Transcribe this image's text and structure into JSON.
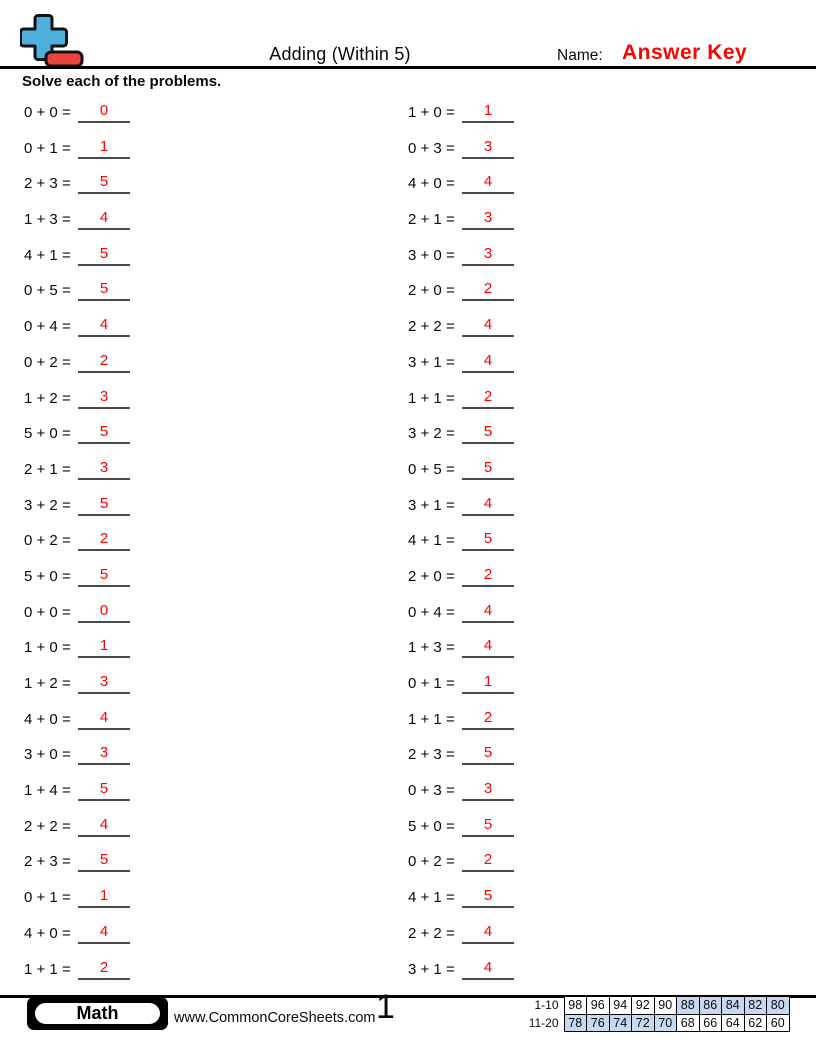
{
  "colors": {
    "answer_red": "#ff0000",
    "underline_gray": "#4a4a4a",
    "score_highlight": "#c6d9f0",
    "logo_blue": "#4fb0dd",
    "logo_red": "#e8453f"
  },
  "header": {
    "title": "Adding (Within 5)",
    "name_label": "Name:",
    "name_value": "Answer Key"
  },
  "instructions": "Solve each of the problems.",
  "problems": {
    "left": [
      {
        "expression": "0 + 0 =",
        "answer": "0"
      },
      {
        "expression": "0 + 1 =",
        "answer": "1"
      },
      {
        "expression": "2 + 3 =",
        "answer": "5"
      },
      {
        "expression": "1 + 3 =",
        "answer": "4"
      },
      {
        "expression": "4 + 1 =",
        "answer": "5"
      },
      {
        "expression": "0 + 5 =",
        "answer": "5"
      },
      {
        "expression": "0 + 4 =",
        "answer": "4"
      },
      {
        "expression": "0 + 2 =",
        "answer": "2"
      },
      {
        "expression": "1 + 2 =",
        "answer": "3"
      },
      {
        "expression": "5 + 0 =",
        "answer": "5"
      },
      {
        "expression": "2 + 1 =",
        "answer": "3"
      },
      {
        "expression": "3 + 2 =",
        "answer": "5"
      },
      {
        "expression": "0 + 2 =",
        "answer": "2"
      },
      {
        "expression": "5 + 0 =",
        "answer": "5"
      },
      {
        "expression": "0 + 0 =",
        "answer": "0"
      },
      {
        "expression": "1 + 0 =",
        "answer": "1"
      },
      {
        "expression": "1 + 2 =",
        "answer": "3"
      },
      {
        "expression": "4 + 0 =",
        "answer": "4"
      },
      {
        "expression": "3 + 0 =",
        "answer": "3"
      },
      {
        "expression": "1 + 4 =",
        "answer": "5"
      },
      {
        "expression": "2 + 2 =",
        "answer": "4"
      },
      {
        "expression": "2 + 3 =",
        "answer": "5"
      },
      {
        "expression": "0 + 1 =",
        "answer": "1"
      },
      {
        "expression": "4 + 0 =",
        "answer": "4"
      },
      {
        "expression": "1 + 1 =",
        "answer": "2"
      }
    ],
    "right": [
      {
        "expression": "1 + 0 =",
        "answer": "1"
      },
      {
        "expression": "0 + 3 =",
        "answer": "3"
      },
      {
        "expression": "4 + 0 =",
        "answer": "4"
      },
      {
        "expression": "2 + 1 =",
        "answer": "3"
      },
      {
        "expression": "3 + 0 =",
        "answer": "3"
      },
      {
        "expression": "2 + 0 =",
        "answer": "2"
      },
      {
        "expression": "2 + 2 =",
        "answer": "4"
      },
      {
        "expression": "3 + 1 =",
        "answer": "4"
      },
      {
        "expression": "1 + 1 =",
        "answer": "2"
      },
      {
        "expression": "3 + 2 =",
        "answer": "5"
      },
      {
        "expression": "0 + 5 =",
        "answer": "5"
      },
      {
        "expression": "3 + 1 =",
        "answer": "4"
      },
      {
        "expression": "4 + 1 =",
        "answer": "5"
      },
      {
        "expression": "2 + 0 =",
        "answer": "2"
      },
      {
        "expression": "0 + 4 =",
        "answer": "4"
      },
      {
        "expression": "1 + 3 =",
        "answer": "4"
      },
      {
        "expression": "0 + 1 =",
        "answer": "1"
      },
      {
        "expression": "1 + 1 =",
        "answer": "2"
      },
      {
        "expression": "2 + 3 =",
        "answer": "5"
      },
      {
        "expression": "0 + 3 =",
        "answer": "3"
      },
      {
        "expression": "5 + 0 =",
        "answer": "5"
      },
      {
        "expression": "0 + 2 =",
        "answer": "2"
      },
      {
        "expression": "4 + 1 =",
        "answer": "5"
      },
      {
        "expression": "2 + 2 =",
        "answer": "4"
      },
      {
        "expression": "3 + 1 =",
        "answer": "4"
      }
    ]
  },
  "footer": {
    "subject": "Math",
    "website": "www.CommonCoreSheets.com",
    "page_number": "1",
    "score_table": {
      "rows": [
        {
          "label": "1-10",
          "values": [
            "98",
            "96",
            "94",
            "92",
            "90",
            "88",
            "86",
            "84",
            "82",
            "80"
          ],
          "highlight": [
            5,
            6,
            7,
            8,
            9
          ]
        },
        {
          "label": "11-20",
          "values": [
            "78",
            "76",
            "74",
            "72",
            "70",
            "68",
            "66",
            "64",
            "62",
            "60"
          ],
          "highlight": [
            0,
            1,
            2,
            3,
            4
          ]
        }
      ]
    }
  }
}
